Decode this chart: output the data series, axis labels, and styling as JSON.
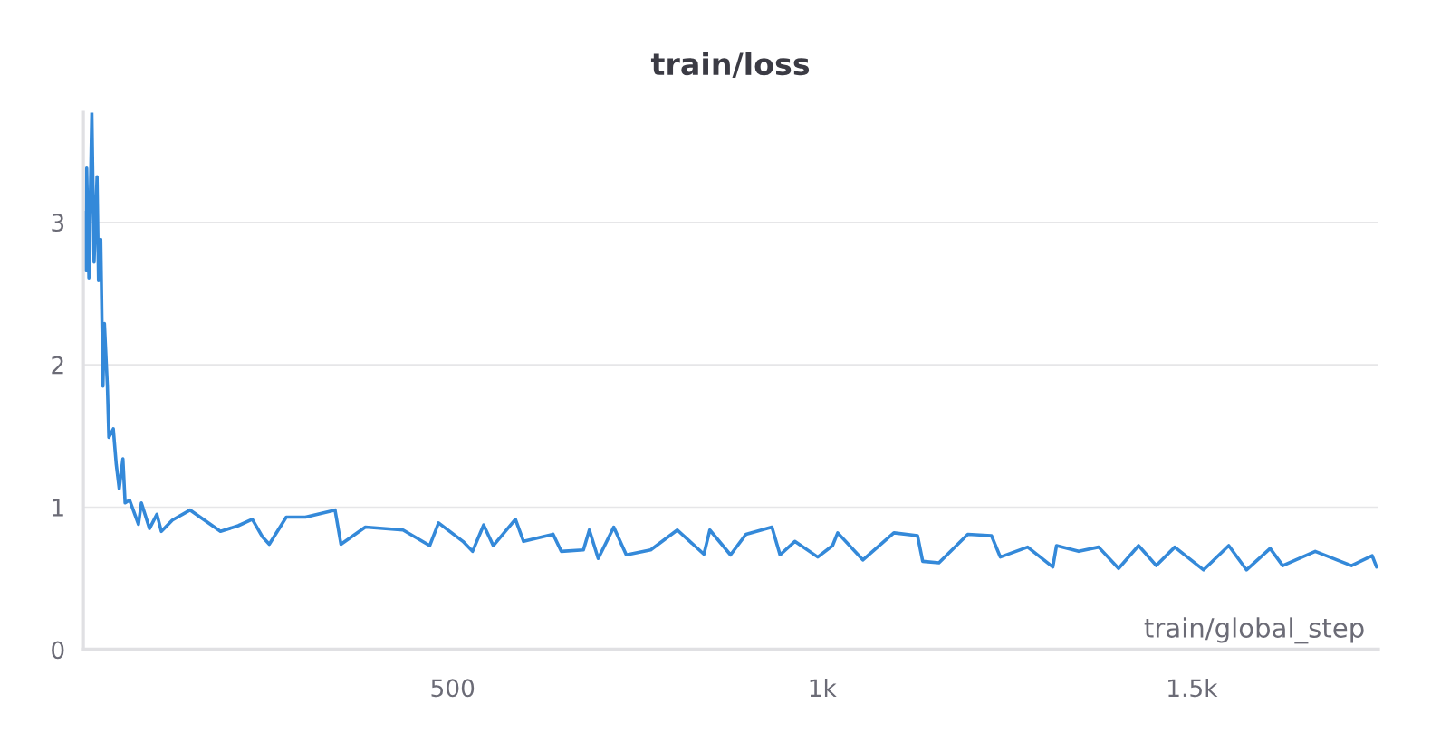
{
  "chart_data": {
    "type": "line",
    "title": "train/loss",
    "xlabel": "train/global_step",
    "xlim": [
      0,
      1752
    ],
    "ylim": [
      0,
      3.77
    ],
    "xticks": [
      {
        "value": 500,
        "label": "500"
      },
      {
        "value": 1000,
        "label": "1k"
      },
      {
        "value": 1500,
        "label": "1.5k"
      }
    ],
    "yticks": [
      0,
      1,
      2,
      3
    ],
    "grid": "y",
    "legend": false,
    "series": [
      {
        "color": "#3489d9",
        "line_style": "solid",
        "x": [
          1,
          3,
          4,
          5,
          8,
          11,
          12,
          15,
          19,
          21,
          24,
          27,
          29,
          33,
          35,
          41,
          45,
          49,
          54,
          57,
          63,
          75,
          79,
          90,
          100,
          106,
          121,
          145,
          186,
          210,
          229,
          243,
          252,
          275,
          301,
          341,
          349,
          382,
          433,
          469,
          481,
          514,
          527,
          542,
          555,
          585,
          596,
          636,
          647,
          677,
          685,
          697,
          718,
          735,
          768,
          804,
          840,
          848,
          876,
          897,
          932,
          943,
          963,
          994,
          1014,
          1021,
          1055,
          1097,
          1129,
          1136,
          1158,
          1197,
          1229,
          1241,
          1278,
          1312,
          1317,
          1347,
          1374,
          1401,
          1428,
          1452,
          1477,
          1516,
          1550,
          1574,
          1606,
          1623,
          1667,
          1716,
          1744,
          1750
        ],
        "values": [
          3.0,
          3.07,
          2.66,
          3.38,
          2.61,
          3.5,
          3.77,
          2.72,
          3.32,
          2.59,
          2.88,
          1.85,
          2.29,
          1.85,
          1.49,
          1.55,
          1.3,
          1.13,
          1.34,
          1.03,
          1.05,
          0.88,
          1.03,
          0.85,
          0.95,
          0.83,
          0.91,
          0.98,
          0.83,
          0.87,
          0.915,
          0.79,
          0.74,
          0.93,
          0.93,
          0.98,
          0.74,
          0.86,
          0.84,
          0.73,
          0.89,
          0.76,
          0.69,
          0.875,
          0.73,
          0.915,
          0.76,
          0.81,
          0.69,
          0.7,
          0.84,
          0.64,
          0.86,
          0.665,
          0.7,
          0.84,
          0.67,
          0.84,
          0.665,
          0.81,
          0.86,
          0.665,
          0.76,
          0.65,
          0.73,
          0.82,
          0.63,
          0.82,
          0.8,
          0.62,
          0.61,
          0.81,
          0.8,
          0.65,
          0.72,
          0.58,
          0.73,
          0.69,
          0.72,
          0.57,
          0.73,
          0.59,
          0.72,
          0.56,
          0.73,
          0.56,
          0.71,
          0.59,
          0.69,
          0.59,
          0.66,
          0.58
        ]
      }
    ]
  }
}
